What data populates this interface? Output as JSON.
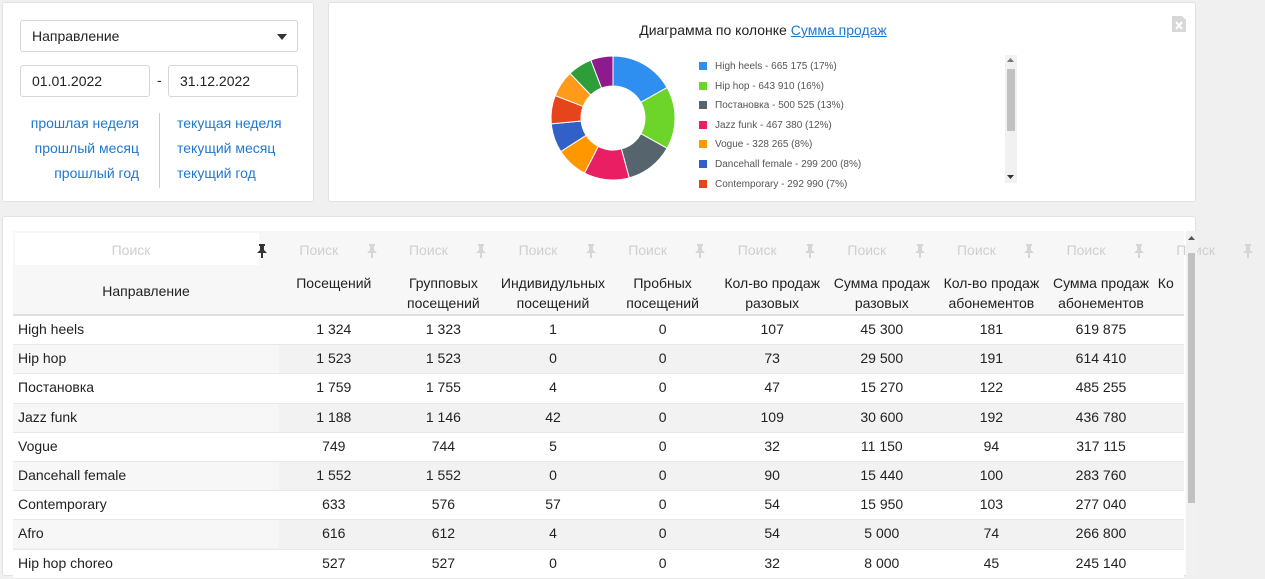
{
  "filters": {
    "direction": "Направление",
    "date_from": "01.01.2022",
    "date_separator": "-",
    "date_to": "31.12.2022",
    "periods_left": [
      "прошлая неделя",
      "прошлый месяц",
      "прошлый год"
    ],
    "periods_right": [
      "текущая неделя",
      "текущий месяц",
      "текущий год"
    ]
  },
  "chart": {
    "title": "Диаграмма по колонке",
    "column_link": "Сумма продаж",
    "values": [
      665175,
      643910,
      500525,
      467380,
      328265,
      299200,
      292990,
      271800,
      253140,
      230000
    ],
    "colors": [
      "#2f8ff0",
      "#6dd42a",
      "#56646e",
      "#e91e63",
      "#ff9800",
      "#3060c8",
      "#e6451c",
      "#ff9a1a",
      "#2e9e3a",
      "#8e1a8e"
    ],
    "legend": [
      "High heels - 665 175 (17%)",
      "Hip hop - 643 910 (16%)",
      "Постановка - 500 525 (13%)",
      "Jazz funk - 467 380 (12%)",
      "Vogue - 328 265 (8%)",
      "Dancehall female - 299 200 (8%)",
      "Contemporary - 292 990 (7%)"
    ]
  },
  "table": {
    "search_placeholder": "Поиск",
    "columns": [
      "Направление",
      "Посещений",
      "Групповых посещений",
      "Индивидульных посещений",
      "Пробных посещений",
      "Кол-во продаж разовых занятий",
      "Сумма продаж разовых занятий",
      "Кол-во продаж абонементов",
      "Сумма продаж абонементов",
      "Ко"
    ],
    "rows": [
      [
        "High heels",
        "1 324",
        "1 323",
        "1",
        "0",
        "107",
        "45 300",
        "181",
        "619 875"
      ],
      [
        "Hip hop",
        "1 523",
        "1 523",
        "0",
        "0",
        "73",
        "29 500",
        "191",
        "614 410"
      ],
      [
        "Постановка",
        "1 759",
        "1 755",
        "4",
        "0",
        "47",
        "15 270",
        "122",
        "485 255"
      ],
      [
        "Jazz funk",
        "1 188",
        "1 146",
        "42",
        "0",
        "109",
        "30 600",
        "192",
        "436 780"
      ],
      [
        "Vogue",
        "749",
        "744",
        "5",
        "0",
        "32",
        "11 150",
        "94",
        "317 115"
      ],
      [
        "Dancehall female",
        "1 552",
        "1 552",
        "0",
        "0",
        "90",
        "15 440",
        "100",
        "283 760"
      ],
      [
        "Contemporary",
        "633",
        "576",
        "57",
        "0",
        "54",
        "15 950",
        "103",
        "277 040"
      ],
      [
        "Afro",
        "616",
        "612",
        "4",
        "0",
        "54",
        "5 000",
        "74",
        "266 800"
      ],
      [
        "Hip hop choreo",
        "527",
        "527",
        "0",
        "0",
        "32",
        "8 000",
        "45",
        "245 140"
      ]
    ]
  }
}
